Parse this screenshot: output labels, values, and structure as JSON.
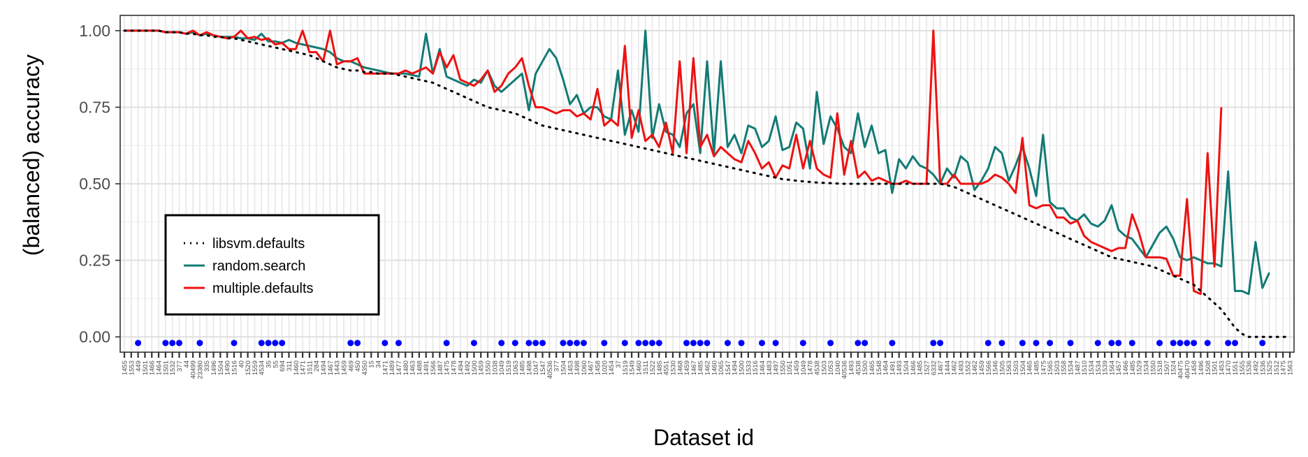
{
  "colors": {
    "libsvm.defaults": "#000000",
    "random.search": "#127B74",
    "multiple.defaults": "#EE1111",
    "dots": "#0000FF",
    "grid": "#E6E6E6"
  },
  "chart_data": {
    "type": "line",
    "title": "",
    "xlabel": "Dataset id",
    "ylabel": "(balanced) accuracy",
    "ylim": [
      -0.05,
      1.05
    ],
    "yticks": [
      "1.00",
      "0.75",
      "0.50",
      "0.25",
      "0.00"
    ],
    "ytick_values": [
      1.0,
      0.75,
      0.5,
      0.25,
      0.0
    ],
    "grid": true,
    "legend_position": "bottom-left",
    "x_tick_labels": [
      "1455",
      "1553",
      "449",
      "1501",
      "1466",
      "1464",
      "1501",
      "1532",
      "377",
      "44",
      "40499",
      "23380",
      "335",
      "1496",
      "1504",
      "1490",
      "1516",
      "40",
      "1520",
      "1559",
      "4534",
      "35",
      "55",
      "694",
      "311",
      "1460",
      "1471",
      "1511",
      "284",
      "1494",
      "1467",
      "1443",
      "1459",
      "469",
      "450",
      "4350",
      "15",
      "34",
      "1471",
      "1489",
      "1477",
      "1480",
      "1463",
      "1488",
      "1491",
      "1566",
      "1487",
      "1475",
      "1478",
      "1494",
      "1492",
      "1500",
      "1459",
      "1550",
      "1038",
      "1049",
      "1519",
      "1063",
      "1485",
      "1498",
      "1047",
      "1547",
      "40536",
      "377",
      "1504",
      "1453",
      "1498",
      "1060",
      "1467",
      "1458",
      "1020",
      "1454",
      "37",
      "1519",
      "1549",
      "1460",
      "1511",
      "1522",
      "1485",
      "4551",
      "1530",
      "1468",
      "1459",
      "1467",
      "1485",
      "1462",
      "1460",
      "1065",
      "1547",
      "1494",
      "1500",
      "1533",
      "1516",
      "1464",
      "1483",
      "1497",
      "1550",
      "1051",
      "1459",
      "1049",
      "1478",
      "4538",
      "1503",
      "1053",
      "1040",
      "40536",
      "1493",
      "4538",
      "1500",
      "1465",
      "1548",
      "1464",
      "1491",
      "1493",
      "1504",
      "1466",
      "1485",
      "1527",
      "6332",
      "1467",
      "1444",
      "1462",
      "1493",
      "1552",
      "1462",
      "1459",
      "1566",
      "1546",
      "1505",
      "1563",
      "1503",
      "1504",
      "1465",
      "1485",
      "1475",
      "1565",
      "1503",
      "1558",
      "1534",
      "1487",
      "1510",
      "1534",
      "1534",
      "1539",
      "1564",
      "1457",
      "1466",
      "1485",
      "1529",
      "1534",
      "1550",
      "1518",
      "1507",
      "1524",
      "40475",
      "40470",
      "1458",
      "1496",
      "1508",
      "1501",
      "1453",
      "1470",
      "1551",
      "1555",
      "1536",
      "1492",
      "1536",
      "1525",
      "1512",
      "1475",
      "1563",
      "1533",
      "469",
      "1476",
      "1550",
      "1551",
      "1553",
      "1459",
      "1519",
      "1482",
      "465",
      "1464",
      "1492",
      "1485"
    ],
    "x_tick_labels_visible_note": "",
    "dot_positions": [
      2,
      6,
      7,
      8,
      11,
      16,
      20,
      21,
      22,
      23,
      33,
      34,
      38,
      40,
      47,
      51,
      55,
      57,
      59,
      60,
      61,
      64,
      65,
      66,
      67,
      70,
      73,
      75,
      76,
      77,
      78,
      82,
      83,
      84,
      85,
      88,
      90,
      93,
      95,
      99,
      103,
      107,
      108,
      112,
      118,
      119,
      126,
      128,
      131,
      133,
      135,
      138,
      142,
      144,
      145,
      147,
      151,
      153,
      154,
      155,
      156,
      158,
      161,
      162,
      166
    ],
    "series": [
      {
        "name": "libsvm.defaults",
        "values": [
          1.0,
          1.0,
          1.0,
          1.0,
          1.0,
          1.0,
          0.995,
          0.995,
          0.995,
          0.99,
          0.99,
          0.985,
          0.985,
          0.98,
          0.98,
          0.975,
          0.975,
          0.97,
          0.965,
          0.96,
          0.955,
          0.95,
          0.945,
          0.94,
          0.935,
          0.93,
          0.925,
          0.92,
          0.91,
          0.9,
          0.89,
          0.88,
          0.875,
          0.87,
          0.87,
          0.865,
          0.865,
          0.86,
          0.86,
          0.86,
          0.855,
          0.85,
          0.845,
          0.84,
          0.835,
          0.83,
          0.82,
          0.81,
          0.8,
          0.79,
          0.78,
          0.77,
          0.76,
          0.75,
          0.745,
          0.74,
          0.735,
          0.73,
          0.72,
          0.71,
          0.7,
          0.69,
          0.685,
          0.68,
          0.675,
          0.67,
          0.665,
          0.66,
          0.655,
          0.65,
          0.645,
          0.64,
          0.635,
          0.63,
          0.625,
          0.62,
          0.615,
          0.61,
          0.605,
          0.6,
          0.595,
          0.59,
          0.585,
          0.58,
          0.575,
          0.57,
          0.565,
          0.56,
          0.555,
          0.55,
          0.545,
          0.54,
          0.535,
          0.53,
          0.525,
          0.52,
          0.515,
          0.513,
          0.51,
          0.508,
          0.506,
          0.504,
          0.503,
          0.502,
          0.501,
          0.5,
          0.5,
          0.5,
          0.5,
          0.5,
          0.5,
          0.5,
          0.5,
          0.5,
          0.5,
          0.5,
          0.5,
          0.5,
          0.5,
          0.5,
          0.495,
          0.49,
          0.48,
          0.47,
          0.46,
          0.45,
          0.44,
          0.43,
          0.42,
          0.41,
          0.4,
          0.39,
          0.38,
          0.37,
          0.36,
          0.35,
          0.34,
          0.33,
          0.32,
          0.31,
          0.3,
          0.29,
          0.28,
          0.27,
          0.26,
          0.255,
          0.25,
          0.245,
          0.24,
          0.235,
          0.23,
          0.22,
          0.21,
          0.2,
          0.19,
          0.18,
          0.17,
          0.15,
          0.13,
          0.11,
          0.09,
          0.06,
          0.03,
          0.01,
          0.0,
          0.0,
          0.0,
          0.0,
          0.0,
          0.0,
          0.0
        ],
        "style": "dotted"
      },
      {
        "name": "random.search",
        "values": [
          1.0,
          1.0,
          1.0,
          1.0,
          1.0,
          1.0,
          0.995,
          0.995,
          0.995,
          0.99,
          0.995,
          0.985,
          0.99,
          0.985,
          0.98,
          0.98,
          0.98,
          0.975,
          0.975,
          0.97,
          0.99,
          0.965,
          0.965,
          0.96,
          0.97,
          0.96,
          0.955,
          0.95,
          0.945,
          0.94,
          0.93,
          0.91,
          0.9,
          0.9,
          0.89,
          0.88,
          0.875,
          0.87,
          0.865,
          0.86,
          0.86,
          0.86,
          0.855,
          0.85,
          0.99,
          0.86,
          0.94,
          0.85,
          0.84,
          0.83,
          0.82,
          0.84,
          0.83,
          0.87,
          0.82,
          0.8,
          0.82,
          0.84,
          0.86,
          0.74,
          0.86,
          0.9,
          0.94,
          0.91,
          0.84,
          0.76,
          0.79,
          0.73,
          0.75,
          0.75,
          0.72,
          0.71,
          0.87,
          0.66,
          0.74,
          0.67,
          1.0,
          0.65,
          0.76,
          0.67,
          0.66,
          0.62,
          0.73,
          0.76,
          0.6,
          0.9,
          0.6,
          0.9,
          0.62,
          0.66,
          0.6,
          0.69,
          0.68,
          0.62,
          0.64,
          0.72,
          0.61,
          0.62,
          0.7,
          0.68,
          0.55,
          0.8,
          0.63,
          0.72,
          0.68,
          0.62,
          0.6,
          0.73,
          0.62,
          0.69,
          0.6,
          0.61,
          0.47,
          0.58,
          0.55,
          0.59,
          0.56,
          0.55,
          0.53,
          0.5,
          0.55,
          0.52,
          0.59,
          0.57,
          0.48,
          0.51,
          0.55,
          0.62,
          0.6,
          0.51,
          0.56,
          0.62,
          0.55,
          0.46,
          0.66,
          0.44,
          0.42,
          0.42,
          0.39,
          0.38,
          0.4,
          0.37,
          0.36,
          0.38,
          0.43,
          0.35,
          0.33,
          0.32,
          0.29,
          0.26,
          0.3,
          0.34,
          0.36,
          0.32,
          0.26,
          0.25,
          0.26,
          0.25,
          0.24,
          0.24,
          0.23,
          0.54,
          0.15,
          0.15,
          0.14,
          0.31,
          0.16,
          0.21
        ],
        "style": "solid"
      },
      {
        "name": "multiple.defaults",
        "values": [
          1.0,
          1.0,
          1.0,
          1.0,
          1.0,
          1.0,
          0.995,
          0.995,
          0.995,
          0.99,
          1.0,
          0.985,
          0.995,
          0.985,
          0.98,
          0.975,
          0.98,
          1.0,
          0.975,
          0.98,
          0.97,
          0.975,
          0.955,
          0.96,
          0.94,
          0.94,
          1.0,
          0.93,
          0.93,
          0.9,
          1.0,
          0.89,
          0.9,
          0.9,
          0.91,
          0.86,
          0.86,
          0.86,
          0.86,
          0.86,
          0.86,
          0.87,
          0.86,
          0.87,
          0.88,
          0.86,
          0.93,
          0.88,
          0.92,
          0.84,
          0.83,
          0.82,
          0.84,
          0.87,
          0.8,
          0.82,
          0.86,
          0.88,
          0.91,
          0.82,
          0.75,
          0.75,
          0.74,
          0.73,
          0.74,
          0.74,
          0.72,
          0.73,
          0.71,
          0.81,
          0.69,
          0.71,
          0.69,
          0.95,
          0.65,
          0.74,
          0.64,
          0.66,
          0.62,
          0.7,
          0.6,
          0.9,
          0.6,
          0.91,
          0.62,
          0.66,
          0.59,
          0.62,
          0.6,
          0.58,
          0.57,
          0.64,
          0.6,
          0.55,
          0.57,
          0.52,
          0.56,
          0.55,
          0.66,
          0.55,
          0.64,
          0.55,
          0.53,
          0.52,
          0.73,
          0.53,
          0.64,
          0.52,
          0.54,
          0.51,
          0.52,
          0.51,
          0.5,
          0.5,
          0.51,
          0.5,
          0.5,
          0.5,
          1.0,
          0.5,
          0.5,
          0.53,
          0.5,
          0.5,
          0.5,
          0.5,
          0.51,
          0.53,
          0.52,
          0.5,
          0.47,
          0.65,
          0.43,
          0.42,
          0.43,
          0.43,
          0.39,
          0.39,
          0.37,
          0.38,
          0.33,
          0.31,
          0.3,
          0.29,
          0.28,
          0.29,
          0.29,
          0.4,
          0.34,
          0.26,
          0.26,
          0.26,
          0.255,
          0.2,
          0.2,
          0.45,
          0.15,
          0.14,
          0.6,
          0.23,
          0.75
        ],
        "style": "solid"
      }
    ]
  }
}
